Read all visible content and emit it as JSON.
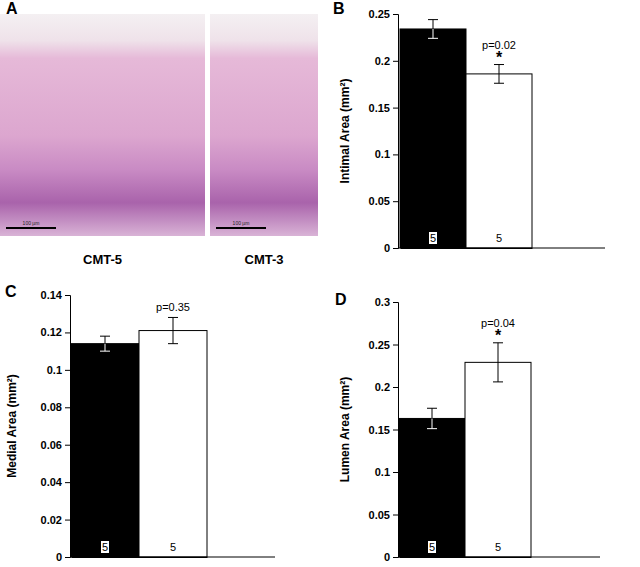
{
  "chart_data": [
    {
      "type": "image",
      "panel": "A",
      "images": [
        {
          "label": "CMT-5",
          "scale_bar": "100 µm"
        },
        {
          "label": "CMT-3",
          "scale_bar": "100 µm"
        }
      ]
    },
    {
      "type": "bar",
      "panel": "B",
      "y_label": "Intimal Area (mm²)",
      "categories": [
        null,
        null
      ],
      "values": [
        0.234,
        0.186
      ],
      "errors": [
        0.01,
        0.01
      ],
      "colors": [
        "#000000",
        "#ffffff"
      ],
      "n": [
        5,
        5
      ],
      "p_value": "p=0.02",
      "significance": "*",
      "ylim": [
        0,
        0.25
      ],
      "yticks": [
        0,
        0.05,
        0.1,
        0.15,
        0.2,
        0.25
      ]
    },
    {
      "type": "bar",
      "panel": "C",
      "y_label": "Medial Area (mm²)",
      "categories": [
        null,
        null
      ],
      "values": [
        0.114,
        0.121
      ],
      "errors": [
        0.004,
        0.007
      ],
      "colors": [
        "#000000",
        "#ffffff"
      ],
      "n": [
        5,
        5
      ],
      "p_value": "p=0.35",
      "ylim": [
        0,
        0.14
      ],
      "yticks": [
        0,
        0.02,
        0.04,
        0.06,
        0.08,
        0.1,
        0.12,
        0.14
      ]
    },
    {
      "type": "bar",
      "panel": "D",
      "y_label": "Lumen Area (mm²)",
      "categories": [
        null,
        null
      ],
      "values": [
        0.163,
        0.229
      ],
      "errors": [
        0.012,
        0.023
      ],
      "colors": [
        "#000000",
        "#ffffff"
      ],
      "n": [
        5,
        5
      ],
      "p_value": "p=0.04",
      "significance": "*",
      "ylim": [
        0,
        0.3
      ],
      "yticks": [
        0,
        0.05,
        0.1,
        0.15,
        0.2,
        0.25,
        0.3
      ]
    }
  ]
}
